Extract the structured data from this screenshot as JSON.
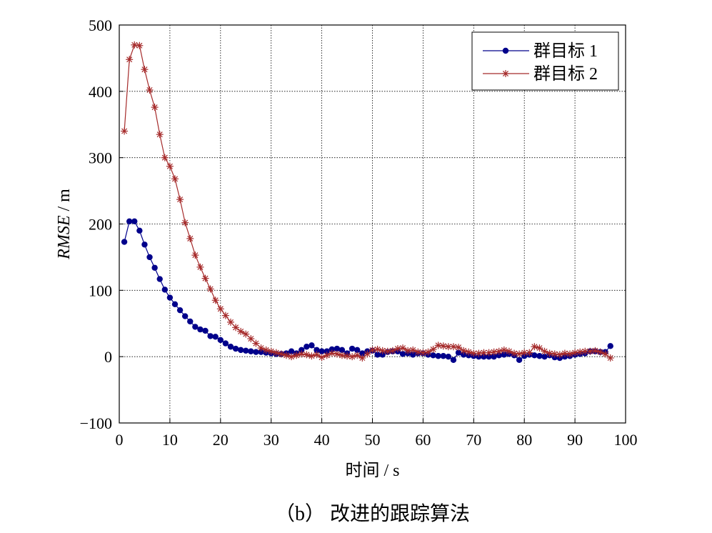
{
  "chart_data": {
    "type": "line",
    "xlabel": "时间 / s",
    "ylabel_italic": "RMSE",
    "ylabel_unit": " / m",
    "caption": "（b） 改进的跟踪算法",
    "xlim": [
      0,
      100
    ],
    "ylim": [
      -100,
      500
    ],
    "x_ticks": [
      0,
      10,
      20,
      30,
      40,
      50,
      60,
      70,
      80,
      90,
      100
    ],
    "y_ticks": [
      -100,
      0,
      100,
      200,
      300,
      400,
      500
    ],
    "x_tick_labels": [
      "0",
      "10",
      "20",
      "30",
      "40",
      "50",
      "60",
      "70",
      "80",
      "90",
      "100"
    ],
    "y_tick_labels": [
      "−100",
      "0",
      "100",
      "200",
      "300",
      "400",
      "500"
    ],
    "grid": true,
    "legend_position": "top-right",
    "colors": {
      "series1": "#00008b",
      "series2": "#a52a2a"
    },
    "series": [
      {
        "name": "群目标 1",
        "marker": "circle",
        "x": [
          1,
          2,
          3,
          4,
          5,
          6,
          7,
          8,
          9,
          10,
          11,
          12,
          13,
          14,
          15,
          16,
          17,
          18,
          19,
          20,
          21,
          22,
          23,
          24,
          25,
          26,
          27,
          28,
          29,
          30,
          31,
          32,
          33,
          34,
          35,
          36,
          37,
          38,
          39,
          40,
          41,
          42,
          43,
          44,
          45,
          46,
          47,
          48,
          49,
          50,
          51,
          52,
          53,
          54,
          55,
          56,
          57,
          58,
          59,
          60,
          61,
          62,
          63,
          64,
          65,
          66,
          67,
          68,
          69,
          70,
          71,
          72,
          73,
          74,
          75,
          76,
          77,
          78,
          79,
          80,
          81,
          82,
          83,
          84,
          85,
          86,
          87,
          88,
          89,
          90,
          91,
          92,
          93,
          94,
          95,
          96,
          97
        ],
        "values": [
          173,
          204,
          204,
          190,
          169,
          150,
          134,
          117,
          101,
          89,
          79,
          70,
          61,
          53,
          45,
          41,
          39,
          31,
          30,
          25,
          20,
          15,
          12,
          10,
          9,
          8,
          7,
          7,
          6,
          5,
          4,
          4,
          5,
          8,
          5,
          10,
          15,
          17,
          10,
          8,
          8,
          11,
          12,
          10,
          5,
          12,
          10,
          5,
          8,
          9,
          3,
          3,
          7,
          8,
          8,
          4,
          5,
          3,
          5,
          5,
          3,
          2,
          1,
          1,
          0,
          -5,
          6,
          3,
          2,
          1,
          0,
          0,
          0,
          0,
          2,
          3,
          4,
          2,
          -5,
          1,
          3,
          2,
          1,
          0,
          2,
          -1,
          -2,
          0,
          1,
          3,
          4,
          5,
          8,
          8,
          7,
          7,
          16
        ]
      },
      {
        "name": "群目标 2",
        "marker": "asterisk",
        "x": [
          1,
          2,
          3,
          4,
          5,
          6,
          7,
          8,
          9,
          10,
          11,
          12,
          13,
          14,
          15,
          16,
          17,
          18,
          19,
          20,
          21,
          22,
          23,
          24,
          25,
          26,
          27,
          28,
          29,
          30,
          31,
          32,
          33,
          34,
          35,
          36,
          37,
          38,
          39,
          40,
          41,
          42,
          43,
          44,
          45,
          46,
          47,
          48,
          49,
          50,
          51,
          52,
          53,
          54,
          55,
          56,
          57,
          58,
          59,
          60,
          61,
          62,
          63,
          64,
          65,
          66,
          67,
          68,
          69,
          70,
          71,
          72,
          73,
          74,
          75,
          76,
          77,
          78,
          79,
          80,
          81,
          82,
          83,
          84,
          85,
          86,
          87,
          88,
          89,
          90,
          91,
          92,
          93,
          94,
          95,
          96,
          97
        ],
        "values": [
          340,
          448,
          470,
          469,
          433,
          402,
          376,
          335,
          300,
          287,
          268,
          237,
          202,
          178,
          153,
          135,
          118,
          102,
          85,
          72,
          62,
          52,
          44,
          38,
          34,
          27,
          20,
          13,
          10,
          8,
          6,
          4,
          2,
          0,
          2,
          4,
          3,
          1,
          3,
          -1,
          2,
          5,
          4,
          2,
          1,
          0,
          2,
          -2,
          4,
          10,
          11,
          9,
          8,
          9,
          12,
          13,
          9,
          10,
          7,
          6,
          7,
          11,
          17,
          16,
          15,
          15,
          14,
          9,
          7,
          5,
          5,
          6,
          6,
          7,
          8,
          10,
          8,
          5,
          4,
          6,
          6,
          15,
          13,
          8,
          5,
          4,
          3,
          5,
          4,
          6,
          7,
          8,
          8,
          9,
          7,
          4,
          -2
        ]
      }
    ]
  }
}
